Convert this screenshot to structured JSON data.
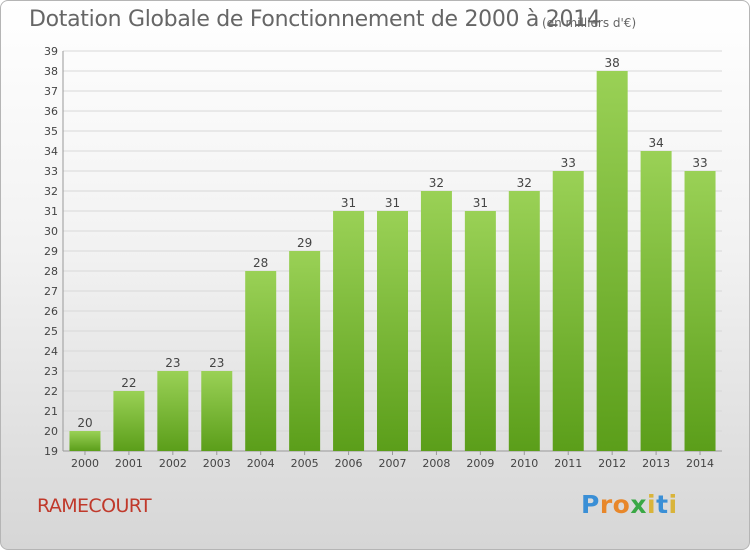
{
  "header": {
    "title": "Dotation Globale de Fonctionnement de 2000 à 2014",
    "subtitle": "(en milliers d'€)"
  },
  "footer": {
    "commune": "RAMECOURT",
    "logo": "Proxiti"
  },
  "colors": {
    "bar_top": "#9ad156",
    "bar_bottom": "#5b9e1a",
    "axis_text": "#444444",
    "gridline": "#d8d8d8",
    "commune": "#c0392b"
  },
  "chart_data": {
    "type": "bar",
    "categories": [
      "2000",
      "2001",
      "2002",
      "2003",
      "2004",
      "2005",
      "2006",
      "2007",
      "2008",
      "2009",
      "2010",
      "2011",
      "2012",
      "2013",
      "2014"
    ],
    "values": [
      20,
      22,
      23,
      23,
      28,
      29,
      31,
      31,
      32,
      31,
      32,
      33,
      38,
      34,
      33
    ],
    "title": "Dotation Globale de Fonctionnement de 2000 à 2014",
    "subtitle": "(en milliers d'€)",
    "xlabel": "",
    "ylabel": "",
    "ylim": [
      19,
      39
    ],
    "yticks": [
      19,
      20,
      21,
      22,
      23,
      24,
      25,
      26,
      27,
      28,
      29,
      30,
      31,
      32,
      33,
      34,
      35,
      36,
      37,
      38,
      39
    ],
    "grid": true,
    "legend": "none"
  }
}
